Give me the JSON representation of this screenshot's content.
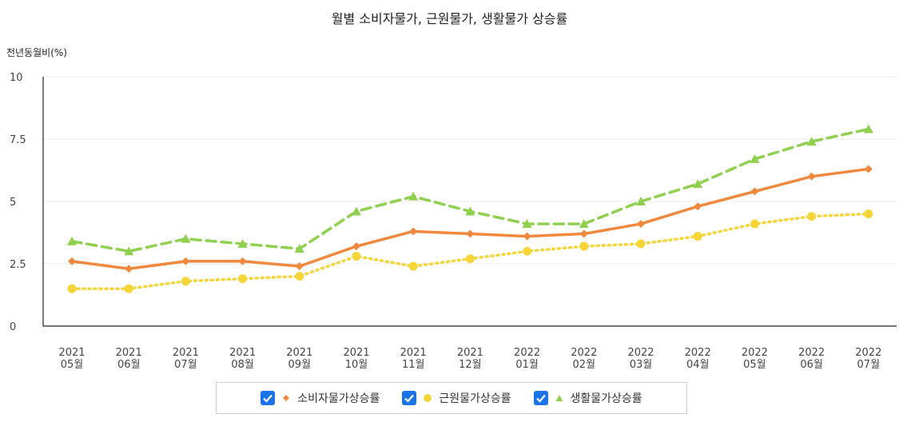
{
  "chart_data": {
    "type": "line",
    "title": "월별 소비자물가, 근원물가, 생활물가 상승률",
    "ylabel": "전년동월비(%)",
    "ylim": [
      0,
      10
    ],
    "yticks": [
      "0",
      "2.5",
      "5",
      "7.5",
      "10"
    ],
    "yticks_values": [
      0,
      2.5,
      5,
      7.5,
      10
    ],
    "categories": [
      [
        "2021",
        "05월"
      ],
      [
        "2021",
        "06월"
      ],
      [
        "2021",
        "07월"
      ],
      [
        "2021",
        "08월"
      ],
      [
        "2021",
        "09월"
      ],
      [
        "2021",
        "10월"
      ],
      [
        "2021",
        "11월"
      ],
      [
        "2021",
        "12월"
      ],
      [
        "2022",
        "01월"
      ],
      [
        "2022",
        "02월"
      ],
      [
        "2022",
        "03월"
      ],
      [
        "2022",
        "04월"
      ],
      [
        "2022",
        "05월"
      ],
      [
        "2022",
        "06월"
      ],
      [
        "2022",
        "07월"
      ]
    ],
    "series": [
      {
        "name": "소비자물가상승률",
        "color": "#f0883e",
        "marker": "diamond",
        "dash": "solid",
        "values": [
          2.6,
          2.3,
          2.6,
          2.6,
          2.4,
          3.2,
          3.8,
          3.7,
          3.6,
          3.7,
          4.1,
          4.8,
          5.4,
          6.0,
          6.3
        ]
      },
      {
        "name": "근원물가상승률",
        "color": "#f5d538",
        "marker": "circle",
        "dash": "dotted",
        "values": [
          1.5,
          1.5,
          1.8,
          1.9,
          2.0,
          2.8,
          2.4,
          2.7,
          3.0,
          3.2,
          3.3,
          3.6,
          4.1,
          4.4,
          4.5
        ]
      },
      {
        "name": "생활물가상승률",
        "color": "#8fd14f",
        "marker": "triangle",
        "dash": "dashed",
        "values": [
          3.4,
          3.0,
          3.5,
          3.3,
          3.1,
          4.6,
          5.2,
          4.6,
          4.1,
          4.1,
          5.0,
          5.7,
          6.7,
          7.4,
          7.9
        ]
      }
    ],
    "grid": true,
    "legend_position": "bottom"
  },
  "legend": {
    "items": [
      {
        "label": "소비자물가상승률",
        "marker": "diamond",
        "color": "#f0883e",
        "checked": true
      },
      {
        "label": "근원물가상승률",
        "marker": "circle",
        "color": "#f5d538",
        "checked": true
      },
      {
        "label": "생활물가상승률",
        "marker": "triangle",
        "color": "#8fd14f",
        "checked": true
      }
    ],
    "checkbox_color": "#1a73e8"
  }
}
